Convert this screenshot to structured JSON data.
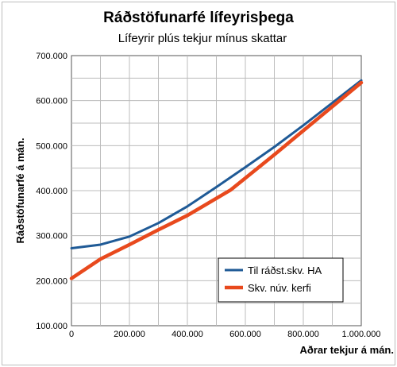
{
  "chart_data": {
    "type": "line",
    "title": "Ráðstöfunarfé lífeyrisþega",
    "subtitle": "Lífeyrir plús tekjur mínus skattar",
    "xlabel": "Aðrar tekjur á mán.",
    "ylabel": "Ráðstöfunarfé á mán.",
    "xlim": [
      0,
      1000000
    ],
    "ylim": [
      100000,
      700000
    ],
    "x_ticks": [
      "0",
      "200.000",
      "400.000",
      "600.000",
      "800.000",
      "1.000.000"
    ],
    "y_ticks": [
      "100.000",
      "200.000",
      "300.000",
      "400.000",
      "500.000",
      "600.000",
      "700.000"
    ],
    "x_tick_values": [
      0,
      200000,
      400000,
      600000,
      800000,
      1000000
    ],
    "y_tick_values": [
      100000,
      200000,
      300000,
      400000,
      500000,
      600000,
      700000
    ],
    "grid": true,
    "legend_position": "bottom-right",
    "series": [
      {
        "name": "Til ráðst.skv. HA",
        "color": "#1f5a96",
        "x": [
          0,
          100000,
          200000,
          300000,
          400000,
          500000,
          600000,
          700000,
          800000,
          900000,
          1000000
        ],
        "y": [
          272000,
          280000,
          298000,
          328000,
          365000,
          408000,
          452000,
          497000,
          545000,
          595000,
          645000
        ]
      },
      {
        "name": "Skv. núv. kerfi",
        "color": "#e8491d",
        "x": [
          0,
          100000,
          200000,
          300000,
          400000,
          550000,
          700000,
          850000,
          1000000
        ],
        "y": [
          205000,
          248000,
          280000,
          313000,
          345000,
          402000,
          480000,
          560000,
          640000
        ]
      }
    ]
  }
}
